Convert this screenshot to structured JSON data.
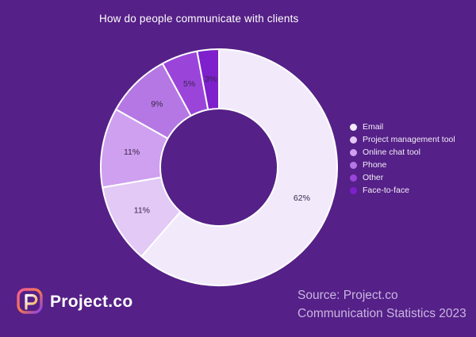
{
  "title": "How do people communicate with clients",
  "chart_data": {
    "type": "pie",
    "subtype": "donut",
    "title": "How do people communicate with clients",
    "categories": [
      "Email",
      "Project management tool",
      "Online chat tool",
      "Phone",
      "Other",
      "Face-to-face"
    ],
    "values": [
      62,
      11,
      11,
      9,
      5,
      3
    ],
    "labels": [
      "62%",
      "11%",
      "11%",
      "9%",
      "5%",
      "3%"
    ],
    "colors": [
      "#f2eafb",
      "#e3c9f6",
      "#cf9ff0",
      "#b577e3",
      "#9b44da",
      "#7e20cc"
    ],
    "slice_border_color": "#ffffff",
    "label_color": "#36284a",
    "legend_position": "right",
    "start_angle_deg": 0,
    "direction": "clockwise"
  },
  "colors": {
    "background": "#552087",
    "title_text": "#ffffff",
    "legend_text": "#f2ecf9",
    "source_text": "#c9b5e1"
  },
  "logo": {
    "text": "Project.co"
  },
  "source": {
    "line1": "Source: Project.co",
    "line2": "Communication Statistics 2023"
  }
}
